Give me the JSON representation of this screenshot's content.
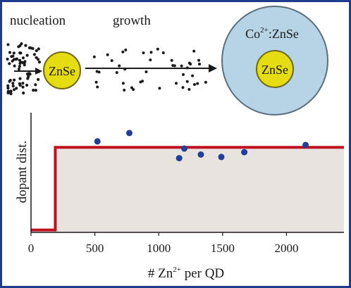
{
  "top": {
    "nucleation_label": "nucleation",
    "growth_label": "growth",
    "core_label": "ZnSe",
    "shell_label_ion": "Co",
    "shell_label_charge": "2+",
    "shell_label_rest": ":ZnSe",
    "shell_core_label": "ZnSe"
  },
  "colors": {
    "dots": "#1a1a1a",
    "core_fill": "#e6dc12",
    "core_stroke": "#6e6a1a",
    "shell_fill": "#b7d3e6",
    "shell_stroke": "#5a6f80",
    "step_line": "#c0121e",
    "step_fill": "#e9e3e0",
    "points": "#1f3f9a",
    "frame": "#1f3b8c"
  },
  "chart_data": {
    "type": "scatter",
    "ylabel": "dopant dist.",
    "xlabel_prefix": "# Zn",
    "xlabel_sup": "2+",
    "xlabel_suffix": " per QD",
    "xlim": [
      0,
      2450
    ],
    "ylim": [
      0,
      1
    ],
    "xticks": [
      "0",
      "500",
      "1000",
      "1500",
      "2000"
    ],
    "xtick_values": [
      0,
      500,
      1000,
      1500,
      2000
    ],
    "step": {
      "x_start": 0,
      "x_jump": 190,
      "x_end": 2450,
      "y_low": 0.02,
      "y_high": 0.71
    },
    "points": [
      {
        "x": 520,
        "y": 0.76
      },
      {
        "x": 770,
        "y": 0.83
      },
      {
        "x": 1160,
        "y": 0.62
      },
      {
        "x": 1200,
        "y": 0.7
      },
      {
        "x": 1330,
        "y": 0.65
      },
      {
        "x": 1490,
        "y": 0.63
      },
      {
        "x": 1670,
        "y": 0.67
      },
      {
        "x": 2150,
        "y": 0.73
      }
    ]
  }
}
